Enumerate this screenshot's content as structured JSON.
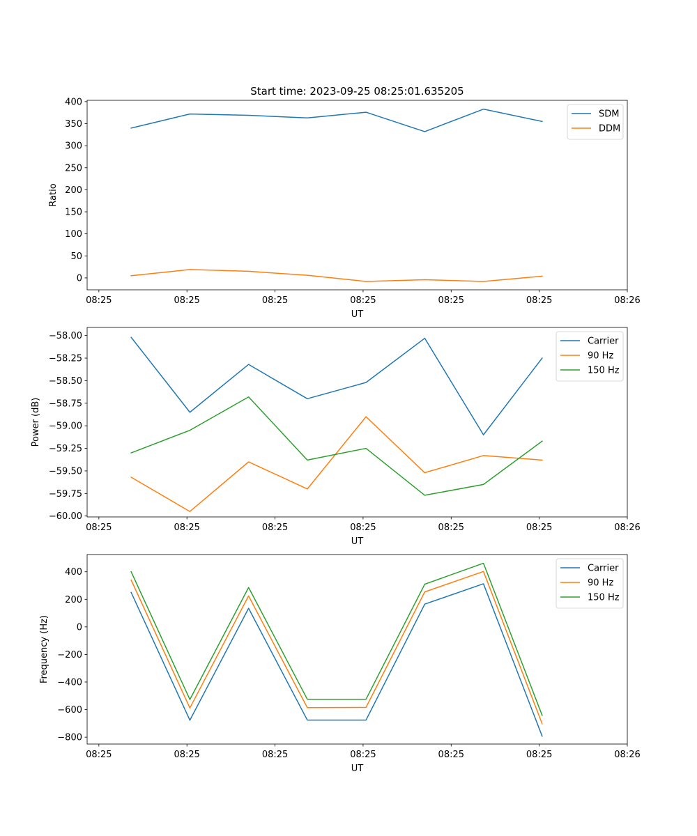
{
  "figure_title": "Start time: 2023-09-25 08:25:01.635205",
  "x_tick_labels": [
    "08:25",
    "08:25",
    "08:25",
    "08:25",
    "08:25",
    "08:25",
    "08:26"
  ],
  "series_colors": {
    "blue": "#1f77b4",
    "orange": "#ff7f0e",
    "green": "#2ca02c"
  },
  "chart_data": [
    {
      "type": "line",
      "title": "Start time: 2023-09-25 08:25:01.635205",
      "xlabel": "UT",
      "ylabel": "Ratio",
      "x": [
        1,
        2,
        3,
        4,
        5,
        6,
        7,
        8
      ],
      "xlim": [
        0.25,
        9.45
      ],
      "x_ticks": [
        0.45,
        1.95,
        3.45,
        4.95,
        6.45,
        7.95,
        9.45
      ],
      "ylim": [
        -27,
        403
      ],
      "y_ticks": [
        0,
        50,
        100,
        150,
        200,
        250,
        300,
        350,
        400
      ],
      "y_tick_labels": [
        "0",
        "50",
        "100",
        "150",
        "200",
        "250",
        "300",
        "350",
        "400"
      ],
      "legend_position": "top-right",
      "series": [
        {
          "name": "SDM",
          "color": "#1f77b4",
          "values": [
            340,
            372,
            369,
            363,
            376,
            332,
            383,
            355
          ]
        },
        {
          "name": "DDM",
          "color": "#ff7f0e",
          "values": [
            5,
            19,
            15,
            6,
            -8,
            -4,
            -8,
            4
          ]
        }
      ]
    },
    {
      "type": "line",
      "title": "",
      "xlabel": "UT",
      "ylabel": "Power (dB)",
      "x": [
        1,
        2,
        3,
        4,
        5,
        6,
        7,
        8
      ],
      "xlim": [
        0.25,
        9.45
      ],
      "x_ticks": [
        0.45,
        1.95,
        3.45,
        4.95,
        6.45,
        7.95,
        9.45
      ],
      "ylim": [
        -60.01,
        -57.91
      ],
      "y_ticks": [
        -60.0,
        -59.75,
        -59.5,
        -59.25,
        -59.0,
        -58.75,
        -58.5,
        -58.25,
        -58.0
      ],
      "y_tick_labels": [
        "−60.00",
        "−59.75",
        "−59.50",
        "−59.25",
        "−59.00",
        "−58.75",
        "−58.50",
        "−58.25",
        "−58.00"
      ],
      "legend_position": "top-right",
      "series": [
        {
          "name": "Carrier",
          "color": "#1f77b4",
          "values": [
            -58.02,
            -58.85,
            -58.32,
            -58.7,
            -58.52,
            -58.03,
            -59.1,
            -58.25
          ]
        },
        {
          "name": "90 Hz",
          "color": "#ff7f0e",
          "values": [
            -59.57,
            -59.95,
            -59.4,
            -59.7,
            -58.9,
            -59.52,
            -59.33,
            -59.38
          ]
        },
        {
          "name": "150 Hz",
          "color": "#2ca02c",
          "values": [
            -59.3,
            -59.05,
            -58.68,
            -59.38,
            -59.25,
            -59.77,
            -59.65,
            -59.17
          ]
        }
      ]
    },
    {
      "type": "line",
      "title": "",
      "xlabel": "UT",
      "ylabel": "Frequency (Hz)",
      "x": [
        1,
        2,
        3,
        4,
        5,
        6,
        7,
        8
      ],
      "xlim": [
        0.25,
        9.45
      ],
      "x_ticks": [
        0.45,
        1.95,
        3.45,
        4.95,
        6.45,
        7.95,
        9.45
      ],
      "ylim": [
        -850,
        525
      ],
      "y_ticks": [
        -800,
        -600,
        -400,
        -200,
        0,
        200,
        400
      ],
      "y_tick_labels": [
        "−800",
        "−600",
        "−400",
        "−200",
        "0",
        "200",
        "400"
      ],
      "legend_position": "top-right",
      "series": [
        {
          "name": "Carrier",
          "color": "#1f77b4",
          "values": [
            250,
            -677,
            135,
            -676,
            -676,
            165,
            313,
            -793
          ]
        },
        {
          "name": "90 Hz",
          "color": "#ff7f0e",
          "values": [
            340,
            -588,
            225,
            -586,
            -584,
            254,
            402,
            -703
          ]
        },
        {
          "name": "150 Hz",
          "color": "#2ca02c",
          "values": [
            400,
            -527,
            286,
            -525,
            -525,
            310,
            462,
            -642
          ]
        }
      ]
    }
  ]
}
